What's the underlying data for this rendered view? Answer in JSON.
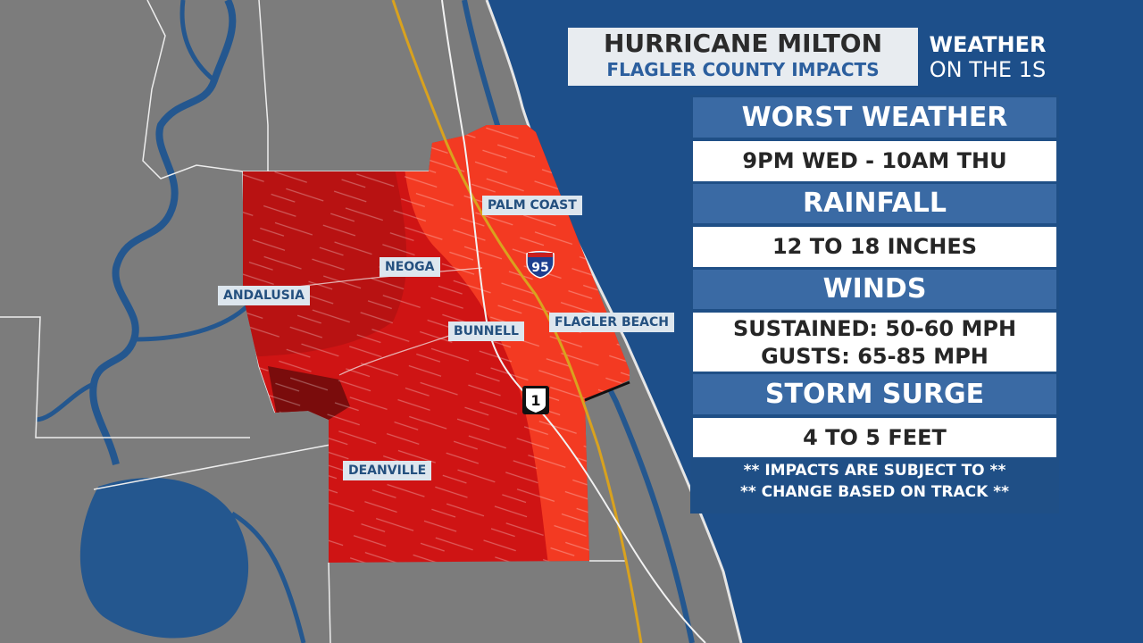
{
  "title": {
    "main": "HURRICANE MILTON",
    "sub": "FLAGLER COUNTY IMPACTS"
  },
  "brand": {
    "line1": "WEATHER",
    "line2": "ON THE 1S"
  },
  "panel": {
    "sections": [
      {
        "header": "WORST WEATHER",
        "values": [
          "9PM WED - 10AM THU"
        ]
      },
      {
        "header": "RAINFALL",
        "values": [
          "12 TO 18 INCHES"
        ]
      },
      {
        "header": "WINDS",
        "values": [
          "SUSTAINED: 50-60 MPH",
          "GUSTS: 65-85 MPH"
        ]
      },
      {
        "header": "STORM SURGE",
        "values": [
          "4 TO 5 FEET"
        ]
      }
    ],
    "note": [
      "** IMPACTS ARE SUBJECT TO **",
      "** CHANGE BASED ON TRACK **"
    ]
  },
  "map": {
    "places": {
      "palm_coast": "PALM COAST",
      "neoga": "NEOGA",
      "andalusia": "ANDALUSIA",
      "bunnell": "BUNNELL",
      "flagler_beach": "FLAGLER BEACH",
      "deanville": "DEANVILLE"
    },
    "routes": {
      "interstate": "95",
      "us_route": "1"
    },
    "colors": {
      "ocean": "#1d4f8a",
      "land": "#7c7c7c",
      "inland_water": "#24578f",
      "impact_inland": "#cf1414",
      "impact_coastal": "#f33a22",
      "impact_core": "#991010",
      "interstate_line": "#d9a21e"
    }
  }
}
